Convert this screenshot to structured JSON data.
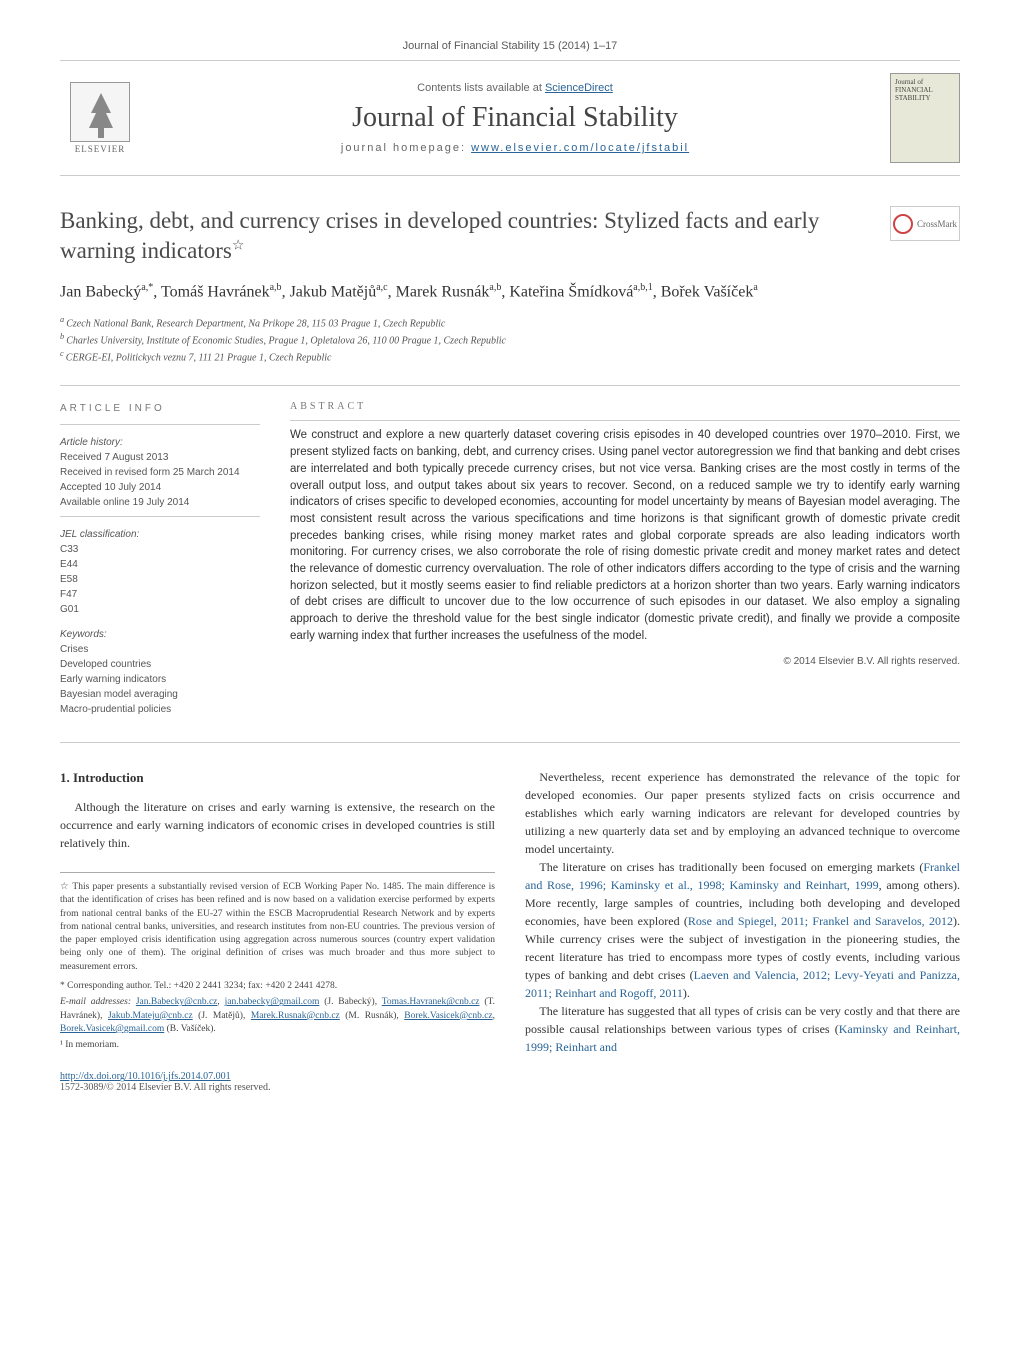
{
  "journal_ref": "Journal of Financial Stability 15 (2014) 1–17",
  "header": {
    "contents_prefix": "Contents lists available at ",
    "contents_link": "ScienceDirect",
    "journal_name": "Journal of Financial Stability",
    "homepage_prefix": "journal homepage: ",
    "homepage_link": "www.elsevier.com/locate/jfstabil",
    "elsevier": "ELSEVIER",
    "cover_text": "Journal of FINANCIAL STABILITY"
  },
  "article": {
    "title": "Banking, debt, and currency crises in developed countries: Stylized facts and early warning indicators",
    "title_note_marker": "☆",
    "crossmark": "CrossMark"
  },
  "authors_line": "Jan Babecký",
  "authors": [
    {
      "name": "Jan Babecký",
      "sup": "a,*"
    },
    {
      "name": "Tomáš Havránek",
      "sup": "a,b"
    },
    {
      "name": "Jakub Matějů",
      "sup": "a,c"
    },
    {
      "name": "Marek Rusnák",
      "sup": "a,b"
    },
    {
      "name": "Kateřina Šmídková",
      "sup": "a,b,1"
    },
    {
      "name": "Bořek Vašíček",
      "sup": "a"
    }
  ],
  "affiliations": [
    {
      "marker": "a",
      "text": "Czech National Bank, Research Department, Na Prikope 28, 115 03 Prague 1, Czech Republic"
    },
    {
      "marker": "b",
      "text": "Charles University, Institute of Economic Studies, Prague 1, Opletalova 26, 110 00 Prague 1, Czech Republic"
    },
    {
      "marker": "c",
      "text": "CERGE-EI, Politickych veznu 7, 111 21 Prague 1, Czech Republic"
    }
  ],
  "info": {
    "heading": "ARTICLE INFO",
    "history_label": "Article history:",
    "history": [
      "Received 7 August 2013",
      "Received in revised form 25 March 2014",
      "Accepted 10 July 2014",
      "Available online 19 July 2014"
    ],
    "jel_label": "JEL classification:",
    "jel": [
      "C33",
      "E44",
      "E58",
      "F47",
      "G01"
    ],
    "keywords_label": "Keywords:",
    "keywords": [
      "Crises",
      "Developed countries",
      "Early warning indicators",
      "Bayesian model averaging",
      "Macro-prudential policies"
    ]
  },
  "abstract": {
    "heading": "ABSTRACT",
    "text": "We construct and explore a new quarterly dataset covering crisis episodes in 40 developed countries over 1970–2010. First, we present stylized facts on banking, debt, and currency crises. Using panel vector autoregression we find that banking and debt crises are interrelated and both typically precede currency crises, but not vice versa. Banking crises are the most costly in terms of the overall output loss, and output takes about six years to recover. Second, on a reduced sample we try to identify early warning indicators of crises specific to developed economies, accounting for model uncertainty by means of Bayesian model averaging. The most consistent result across the various specifications and time horizons is that significant growth of domestic private credit precedes banking crises, while rising money market rates and global corporate spreads are also leading indicators worth monitoring. For currency crises, we also corroborate the role of rising domestic private credit and money market rates and detect the relevance of domestic currency overvaluation. The role of other indicators differs according to the type of crisis and the warning horizon selected, but it mostly seems easier to find reliable predictors at a horizon shorter than two years. Early warning indicators of debt crises are difficult to uncover due to the low occurrence of such episodes in our dataset. We also employ a signaling approach to derive the threshold value for the best single indicator (domestic private credit), and finally we provide a composite early warning index that further increases the usefulness of the model.",
    "copyright": "© 2014 Elsevier B.V. All rights reserved."
  },
  "body": {
    "section_num": "1.",
    "section_title": "Introduction",
    "p1": "Although the literature on crises and early warning is extensive, the research on the occurrence and early warning indicators of economic crises in developed countries is still relatively thin.",
    "p2": "Nevertheless, recent experience has demonstrated the relevance of the topic for developed economies. Our paper presents stylized facts on crisis occurrence and establishes which early warning indicators are relevant for developed countries by utilizing a new quarterly data set and by employing an advanced technique to overcome model uncertainty.",
    "p3_a": "The literature on crises has traditionally been focused on emerging markets (",
    "p3_cite1": "Frankel and Rose, 1996; Kaminsky et al., 1998; Kaminsky and Reinhart, 1999",
    "p3_b": ", among others). More recently, large samples of countries, including both developing and developed economies, have been explored (",
    "p3_cite2": "Rose and Spiegel, 2011; Frankel and Saravelos, 2012",
    "p3_c": "). While currency crises were the subject of investigation in the pioneering studies, the recent literature has tried to encompass more types of costly events, including various types of banking and debt crises (",
    "p3_cite3": "Laeven and Valencia, 2012; Levy-Yeyati and Panizza, 2011; Reinhart and Rogoff, 2011",
    "p3_d": ").",
    "p4_a": "The literature has suggested that all types of crisis can be very costly and that there are possible causal relationships between various types of crises (",
    "p4_cite1": "Kaminsky and Reinhart, 1999; Reinhart and"
  },
  "footnotes": {
    "star": "☆ This paper presents a substantially revised version of ECB Working Paper No. 1485. The main difference is that the identification of crises has been refined and is now based on a validation exercise performed by experts from national central banks of the EU-27 within the ESCB Macroprudential Research Network and by experts from national central banks, universities, and research institutes from non-EU countries. The previous version of the paper employed crisis identification using aggregation across numerous sources (country expert validation being only one of them). The original definition of crises was much broader and thus more subject to measurement errors.",
    "corr_label": "* Corresponding author. Tel.: +420 2 2441 3234; fax: +420 2 2441 4278.",
    "email_label": "E-mail addresses:",
    "emails": [
      {
        "addr": "Jan.Babecky@cnb.cz",
        "alt": "jan.babecky@gmail.com",
        "who": "(J. Babecký)"
      },
      {
        "addr": "Tomas.Havranek@cnb.cz",
        "who": "(T. Havránek)"
      },
      {
        "addr": "Jakub.Mateju@cnb.cz",
        "who": "(J. Matějů)"
      },
      {
        "addr": "Marek.Rusnak@cnb.cz",
        "who": "(M. Rusnák)"
      },
      {
        "addr": "Borek.Vasicek@cnb.cz",
        "alt": "Borek.Vasicek@gmail.com",
        "who": "(B. Vašíček)"
      }
    ],
    "memoriam": "¹ In memoriam."
  },
  "footer": {
    "doi": "http://dx.doi.org/10.1016/j.jfs.2014.07.001",
    "issn": "1572-3089/© 2014 Elsevier B.V. All rights reserved."
  },
  "colors": {
    "link": "#2a6496",
    "text": "#333333",
    "muted": "#666666",
    "border": "#cccccc"
  }
}
